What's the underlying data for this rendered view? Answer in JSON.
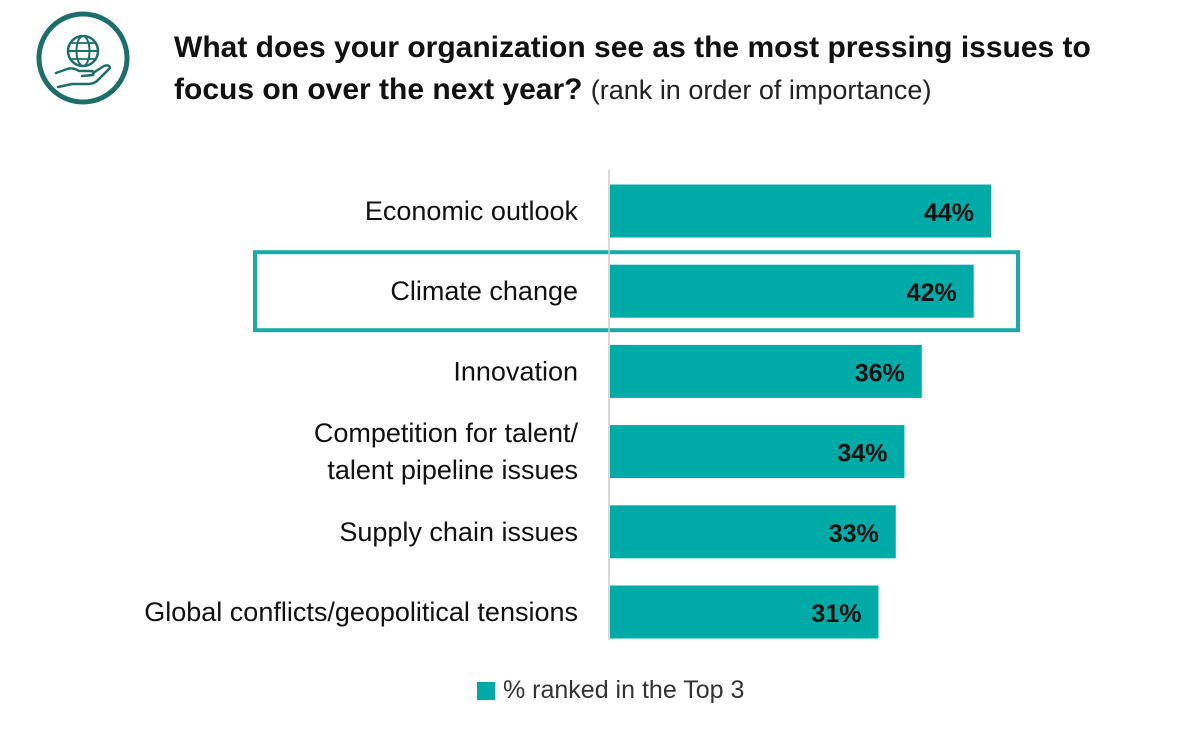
{
  "header": {
    "question": "What does your organization see as the most pressing issues to focus on over the next year?",
    "subtitle": "(rank in order of importance)",
    "icon": "globe-in-hand-icon"
  },
  "colors": {
    "bar": "#00AAA6",
    "icon": "#1C6E6A",
    "highlight": "#1BAAA5",
    "axis": "#cccccc",
    "label": "#111111"
  },
  "chart_data": {
    "type": "bar",
    "orientation": "horizontal",
    "categories": [
      [
        "Economic outlook"
      ],
      [
        "Climate change"
      ],
      [
        "Innovation"
      ],
      [
        "Competition for talent/",
        "talent pipeline issues"
      ],
      [
        "Supply chain issues"
      ],
      [
        "Global conflicts/geopolitical tensions"
      ]
    ],
    "series": [
      {
        "name": "% ranked in the Top 3",
        "values": [
          44,
          42,
          36,
          34,
          33,
          31
        ]
      }
    ],
    "value_labels": [
      "44%",
      "42%",
      "36%",
      "34%",
      "33%",
      "31%"
    ],
    "highlighted_category": "Climate change",
    "legend": "bottom",
    "grid": false
  },
  "legend": {
    "label": "% ranked in the Top 3"
  }
}
